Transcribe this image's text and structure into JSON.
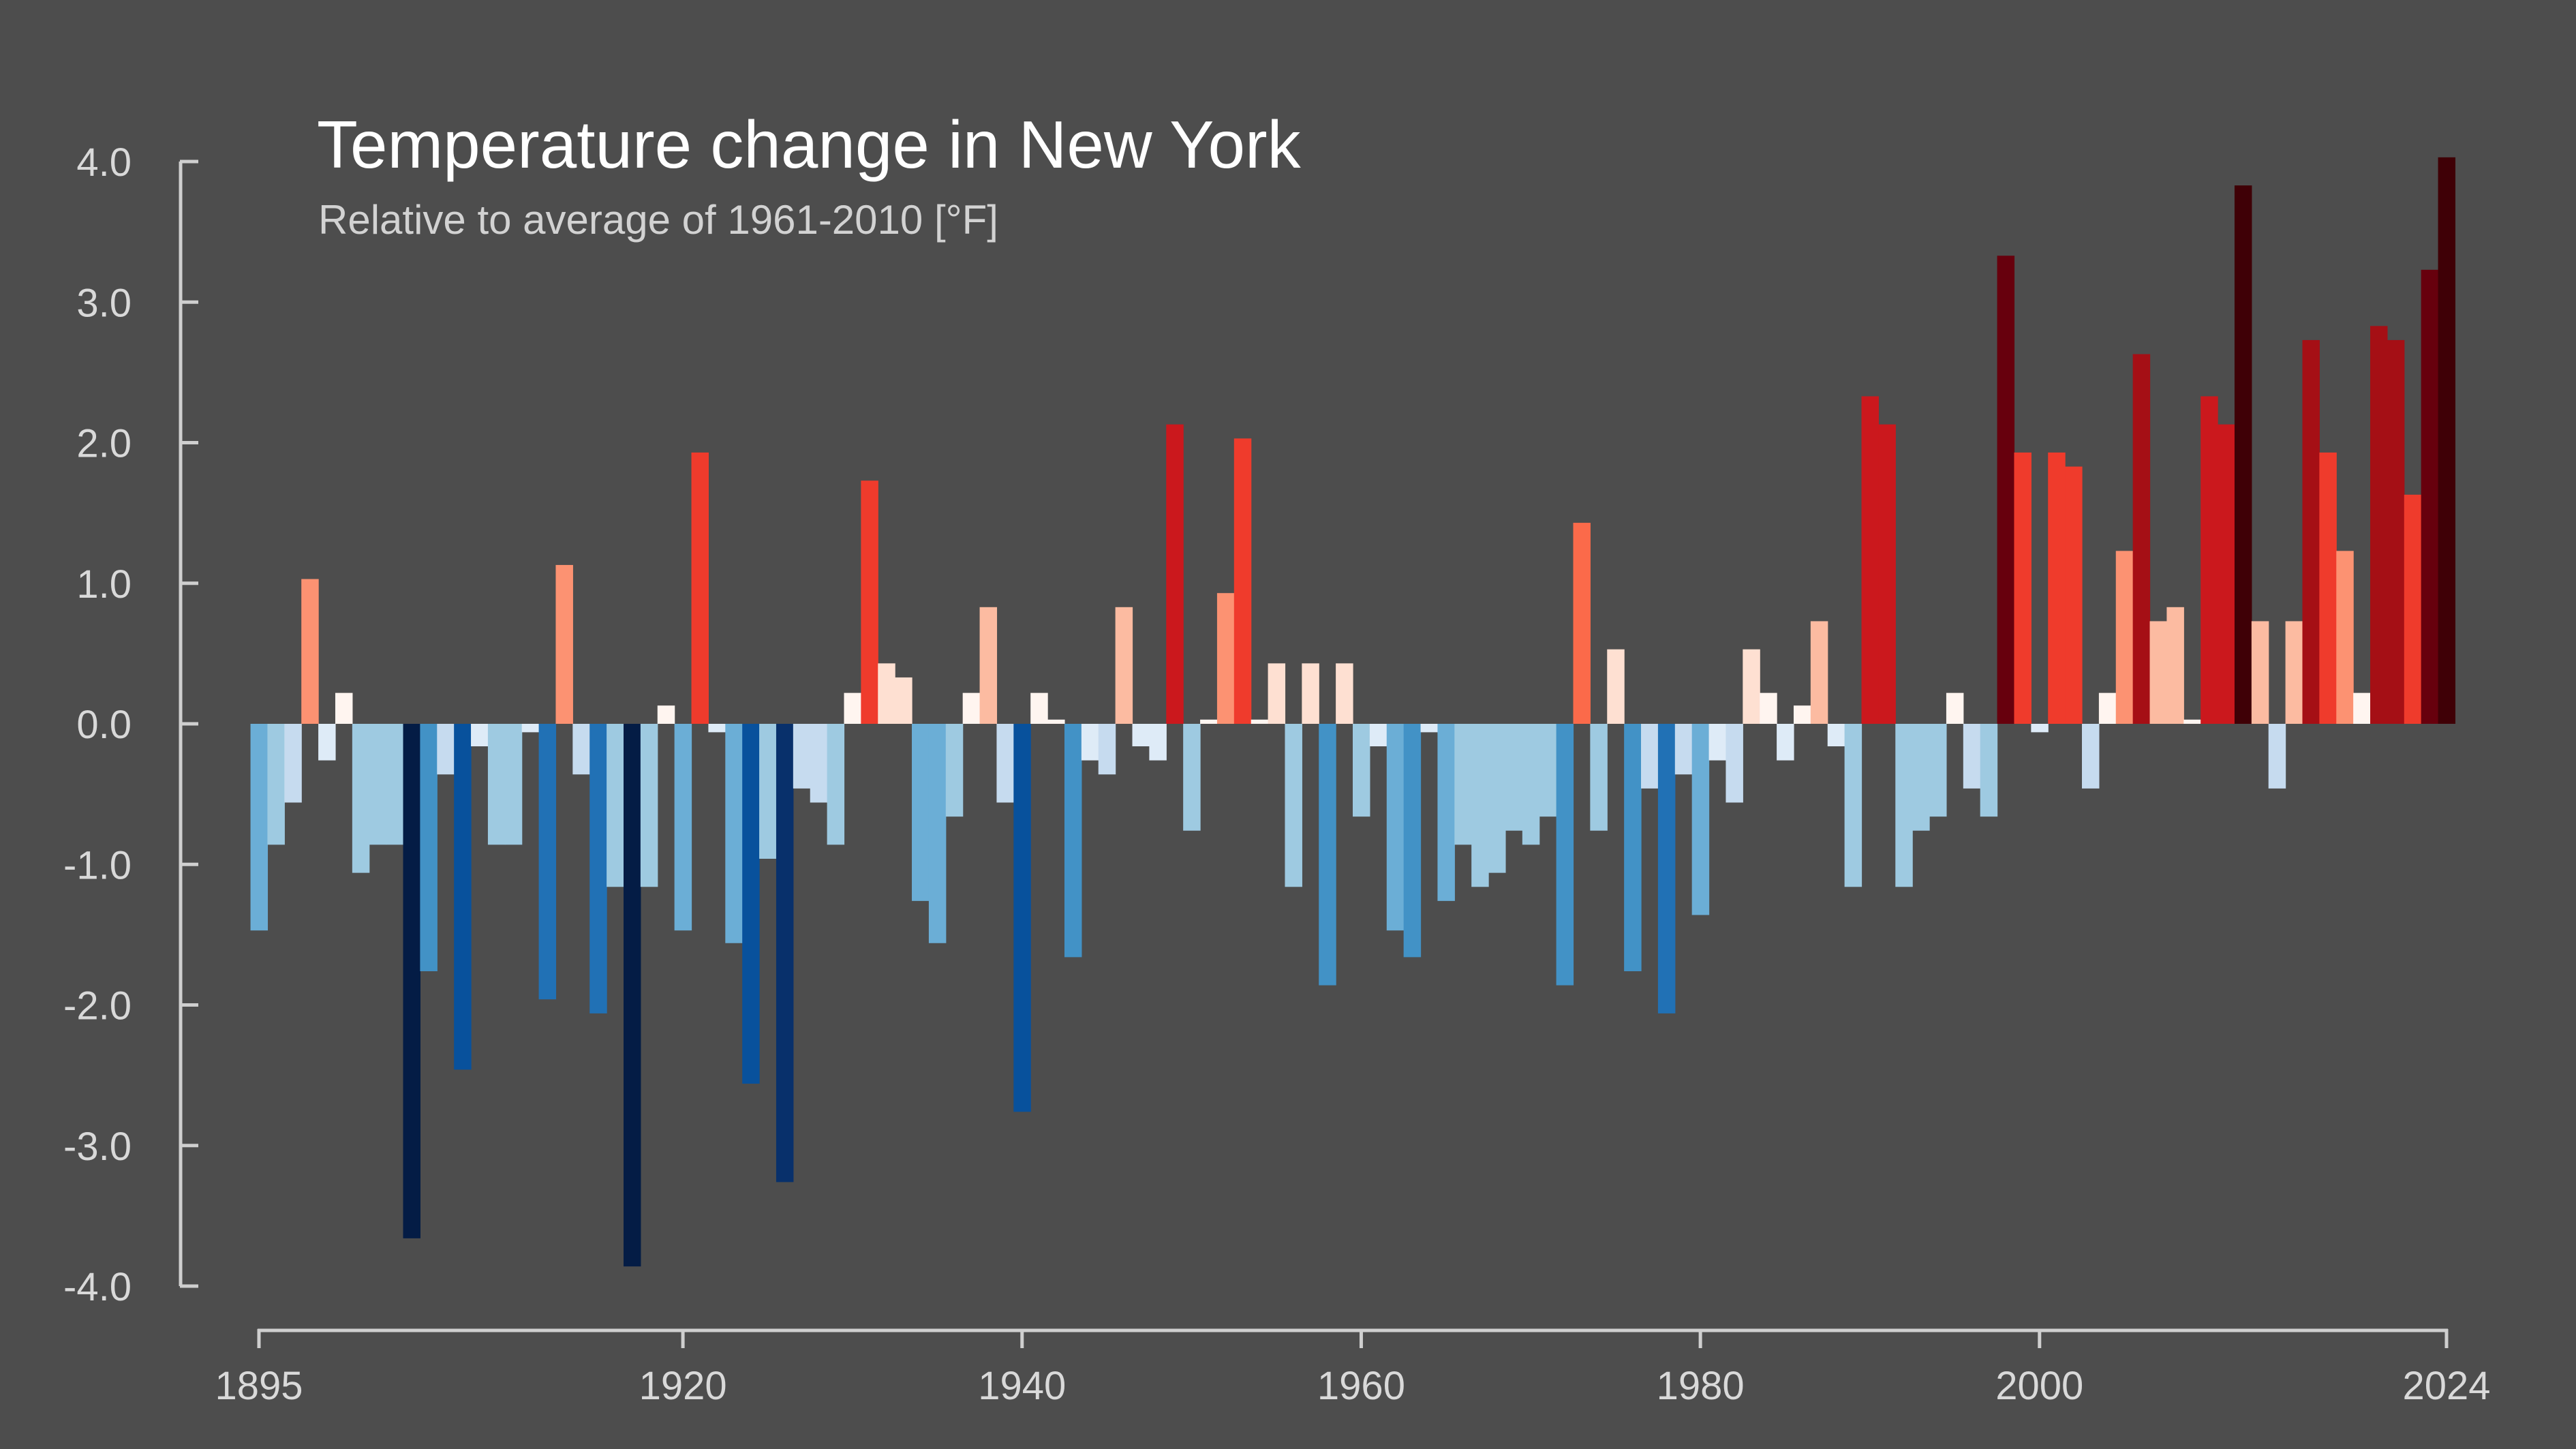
{
  "chart_data": {
    "type": "bar",
    "title": "Temperature change in New York",
    "subtitle": "Relative to average of 1961-2010  [°F]",
    "xlabel": "",
    "ylabel": "",
    "ylim": [
      -4.0,
      4.0
    ],
    "yticks": [
      "4.0",
      "3.0",
      "2.0",
      "1.0",
      "0.0",
      "-1.0",
      "-2.0",
      "-3.0",
      "-4.0"
    ],
    "xticks": [
      "1895",
      "1920",
      "1940",
      "1960",
      "1980",
      "2000",
      "2024"
    ],
    "grid": false,
    "legend": "none",
    "x": [
      1895,
      1896,
      1897,
      1898,
      1899,
      1900,
      1901,
      1902,
      1903,
      1904,
      1905,
      1906,
      1907,
      1908,
      1909,
      1910,
      1911,
      1912,
      1913,
      1914,
      1915,
      1916,
      1917,
      1918,
      1919,
      1920,
      1921,
      1922,
      1923,
      1924,
      1925,
      1926,
      1927,
      1928,
      1929,
      1930,
      1931,
      1932,
      1933,
      1934,
      1935,
      1936,
      1937,
      1938,
      1939,
      1940,
      1941,
      1942,
      1943,
      1944,
      1945,
      1946,
      1947,
      1948,
      1949,
      1950,
      1951,
      1952,
      1953,
      1954,
      1955,
      1956,
      1957,
      1958,
      1959,
      1960,
      1961,
      1962,
      1963,
      1964,
      1965,
      1966,
      1967,
      1968,
      1969,
      1970,
      1971,
      1972,
      1973,
      1974,
      1975,
      1976,
      1977,
      1978,
      1979,
      1980,
      1981,
      1982,
      1983,
      1984,
      1985,
      1986,
      1987,
      1988,
      1989,
      1990,
      1991,
      1992,
      1993,
      1994,
      1995,
      1996,
      1997,
      1998,
      1999,
      2000,
      2001,
      2002,
      2003,
      2004,
      2005,
      2006,
      2007,
      2008,
      2009,
      2010,
      2011,
      2012,
      2013,
      2014,
      2015,
      2016,
      2017,
      2018,
      2019,
      2020,
      2021,
      2022,
      2023,
      2024
    ],
    "values": [
      -1.47,
      -0.86,
      -0.56,
      1.03,
      -0.26,
      0.22,
      -1.06,
      -0.86,
      -0.86,
      -3.66,
      -1.76,
      -0.36,
      -2.46,
      -0.16,
      -0.86,
      -0.86,
      -0.06,
      -1.96,
      1.13,
      -0.36,
      -2.06,
      -1.16,
      -3.86,
      -1.16,
      0.13,
      -1.47,
      1.93,
      -0.06,
      -1.56,
      -2.56,
      -0.96,
      -3.26,
      -0.46,
      -0.56,
      -0.86,
      0.22,
      1.73,
      0.43,
      0.33,
      -1.26,
      -1.56,
      -0.66,
      0.22,
      0.83,
      -0.56,
      -2.76,
      0.22,
      0.03,
      -1.66,
      -0.26,
      -0.36,
      0.83,
      -0.16,
      -0.26,
      2.13,
      -0.76,
      0.03,
      0.93,
      2.03,
      0.03,
      0.43,
      -1.16,
      0.43,
      -1.86,
      0.43,
      -0.66,
      -0.16,
      -1.47,
      -1.66,
      -0.06,
      -1.26,
      -0.86,
      -1.16,
      -1.06,
      -0.76,
      -0.86,
      -0.66,
      -1.86,
      1.43,
      -0.76,
      0.53,
      -1.76,
      -0.46,
      -2.06,
      -0.36,
      -1.36,
      -0.26,
      -0.56,
      0.53,
      0.22,
      -0.26,
      0.13,
      0.73,
      -0.16,
      -1.16,
      2.33,
      2.13,
      -1.16,
      -0.76,
      -0.66,
      0.22,
      -0.46,
      -0.66,
      3.33,
      1.93,
      -0.06,
      1.93,
      1.83,
      -0.46,
      0.22,
      1.23,
      2.63,
      0.73,
      0.83,
      0.03,
      2.33,
      2.13,
      3.83,
      0.73,
      -0.46,
      0.73,
      2.73,
      1.93,
      1.23,
      0.22,
      2.83,
      2.73,
      1.63,
      3.23,
      4.03
    ]
  }
}
